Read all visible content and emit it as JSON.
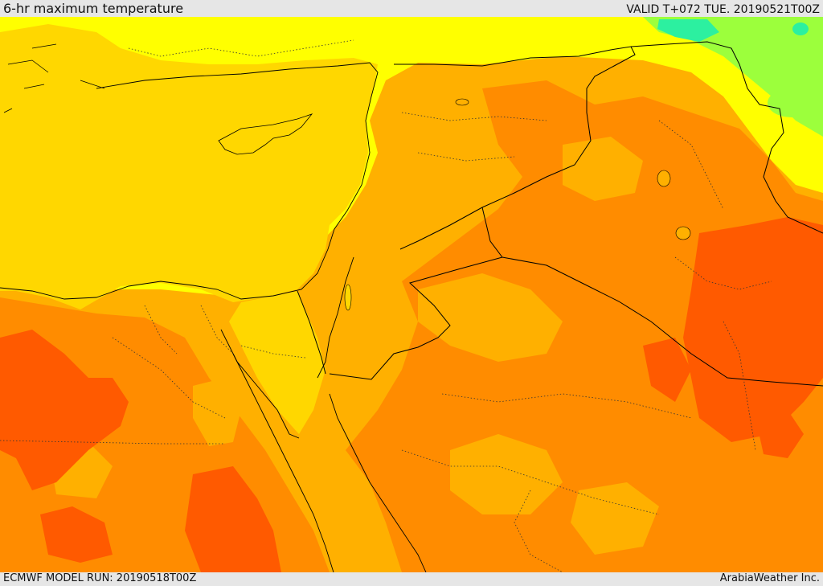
{
  "header": {
    "title": "6-hr maximum temperature",
    "valid": "VALID T+072 TUE. 20190521T00Z"
  },
  "footer": {
    "model_run": "ECMWF MODEL RUN: 20190518T00Z",
    "credit": "ArabiaWeather Inc."
  },
  "map": {
    "colors": {
      "sea": "#ffd700",
      "cool_band": "#ffff00",
      "light_orange": "#ffb000",
      "orange": "#ff8c00",
      "hot": "#ff5a00",
      "cold_green": "#9cff3c",
      "cold_cyan": "#2cf0a0",
      "border_line": "#000000"
    }
  }
}
